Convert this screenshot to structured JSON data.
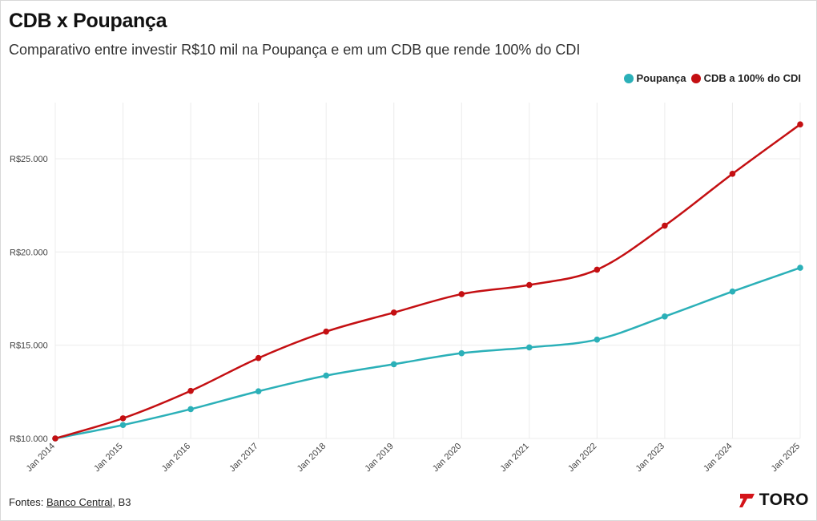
{
  "header": {
    "title": "CDB x Poupança",
    "subtitle": "Comparativo entre investir R$10 mil na Poupança e em um CDB que rende 100% do CDI"
  },
  "legend": {
    "items": [
      {
        "label": "Poupança",
        "color": "#2bb0b8"
      },
      {
        "label": "CDB a 100% do CDI",
        "color": "#c40f12"
      }
    ]
  },
  "footer": {
    "prefix": "Fontes: ",
    "link": "Banco Central",
    "suffix": ", B3",
    "logo_text": "TORO",
    "logo_icon": "toro-logo-icon"
  },
  "chart_data": {
    "type": "line",
    "x": [
      "Jan 2014",
      "Jan 2015",
      "Jan 2016",
      "Jan 2017",
      "Jan 2018",
      "Jan 2019",
      "Jan 2020",
      "Jan 2021",
      "Jan 2022",
      "Jan 2023",
      "Jan 2024",
      "Jan 2025"
    ],
    "series": [
      {
        "name": "Poupança",
        "color": "#2bb0b8",
        "values": [
          10000,
          10720,
          11570,
          12530,
          13370,
          13980,
          14570,
          14880,
          15300,
          16540,
          17880,
          19150
        ]
      },
      {
        "name": "CDB a 100% do CDI",
        "color": "#c40f12",
        "values": [
          10000,
          11080,
          12550,
          14310,
          15730,
          16750,
          17740,
          18230,
          19050,
          21410,
          24190,
          26840
        ]
      }
    ],
    "yticks": [
      "R$10.000",
      "R$15.000",
      "R$20.000",
      "R$25.000"
    ],
    "ytick_values": [
      10000,
      15000,
      20000,
      25000
    ],
    "ylim": [
      10000,
      28000
    ],
    "grid": true,
    "legend_position": "top-right"
  }
}
